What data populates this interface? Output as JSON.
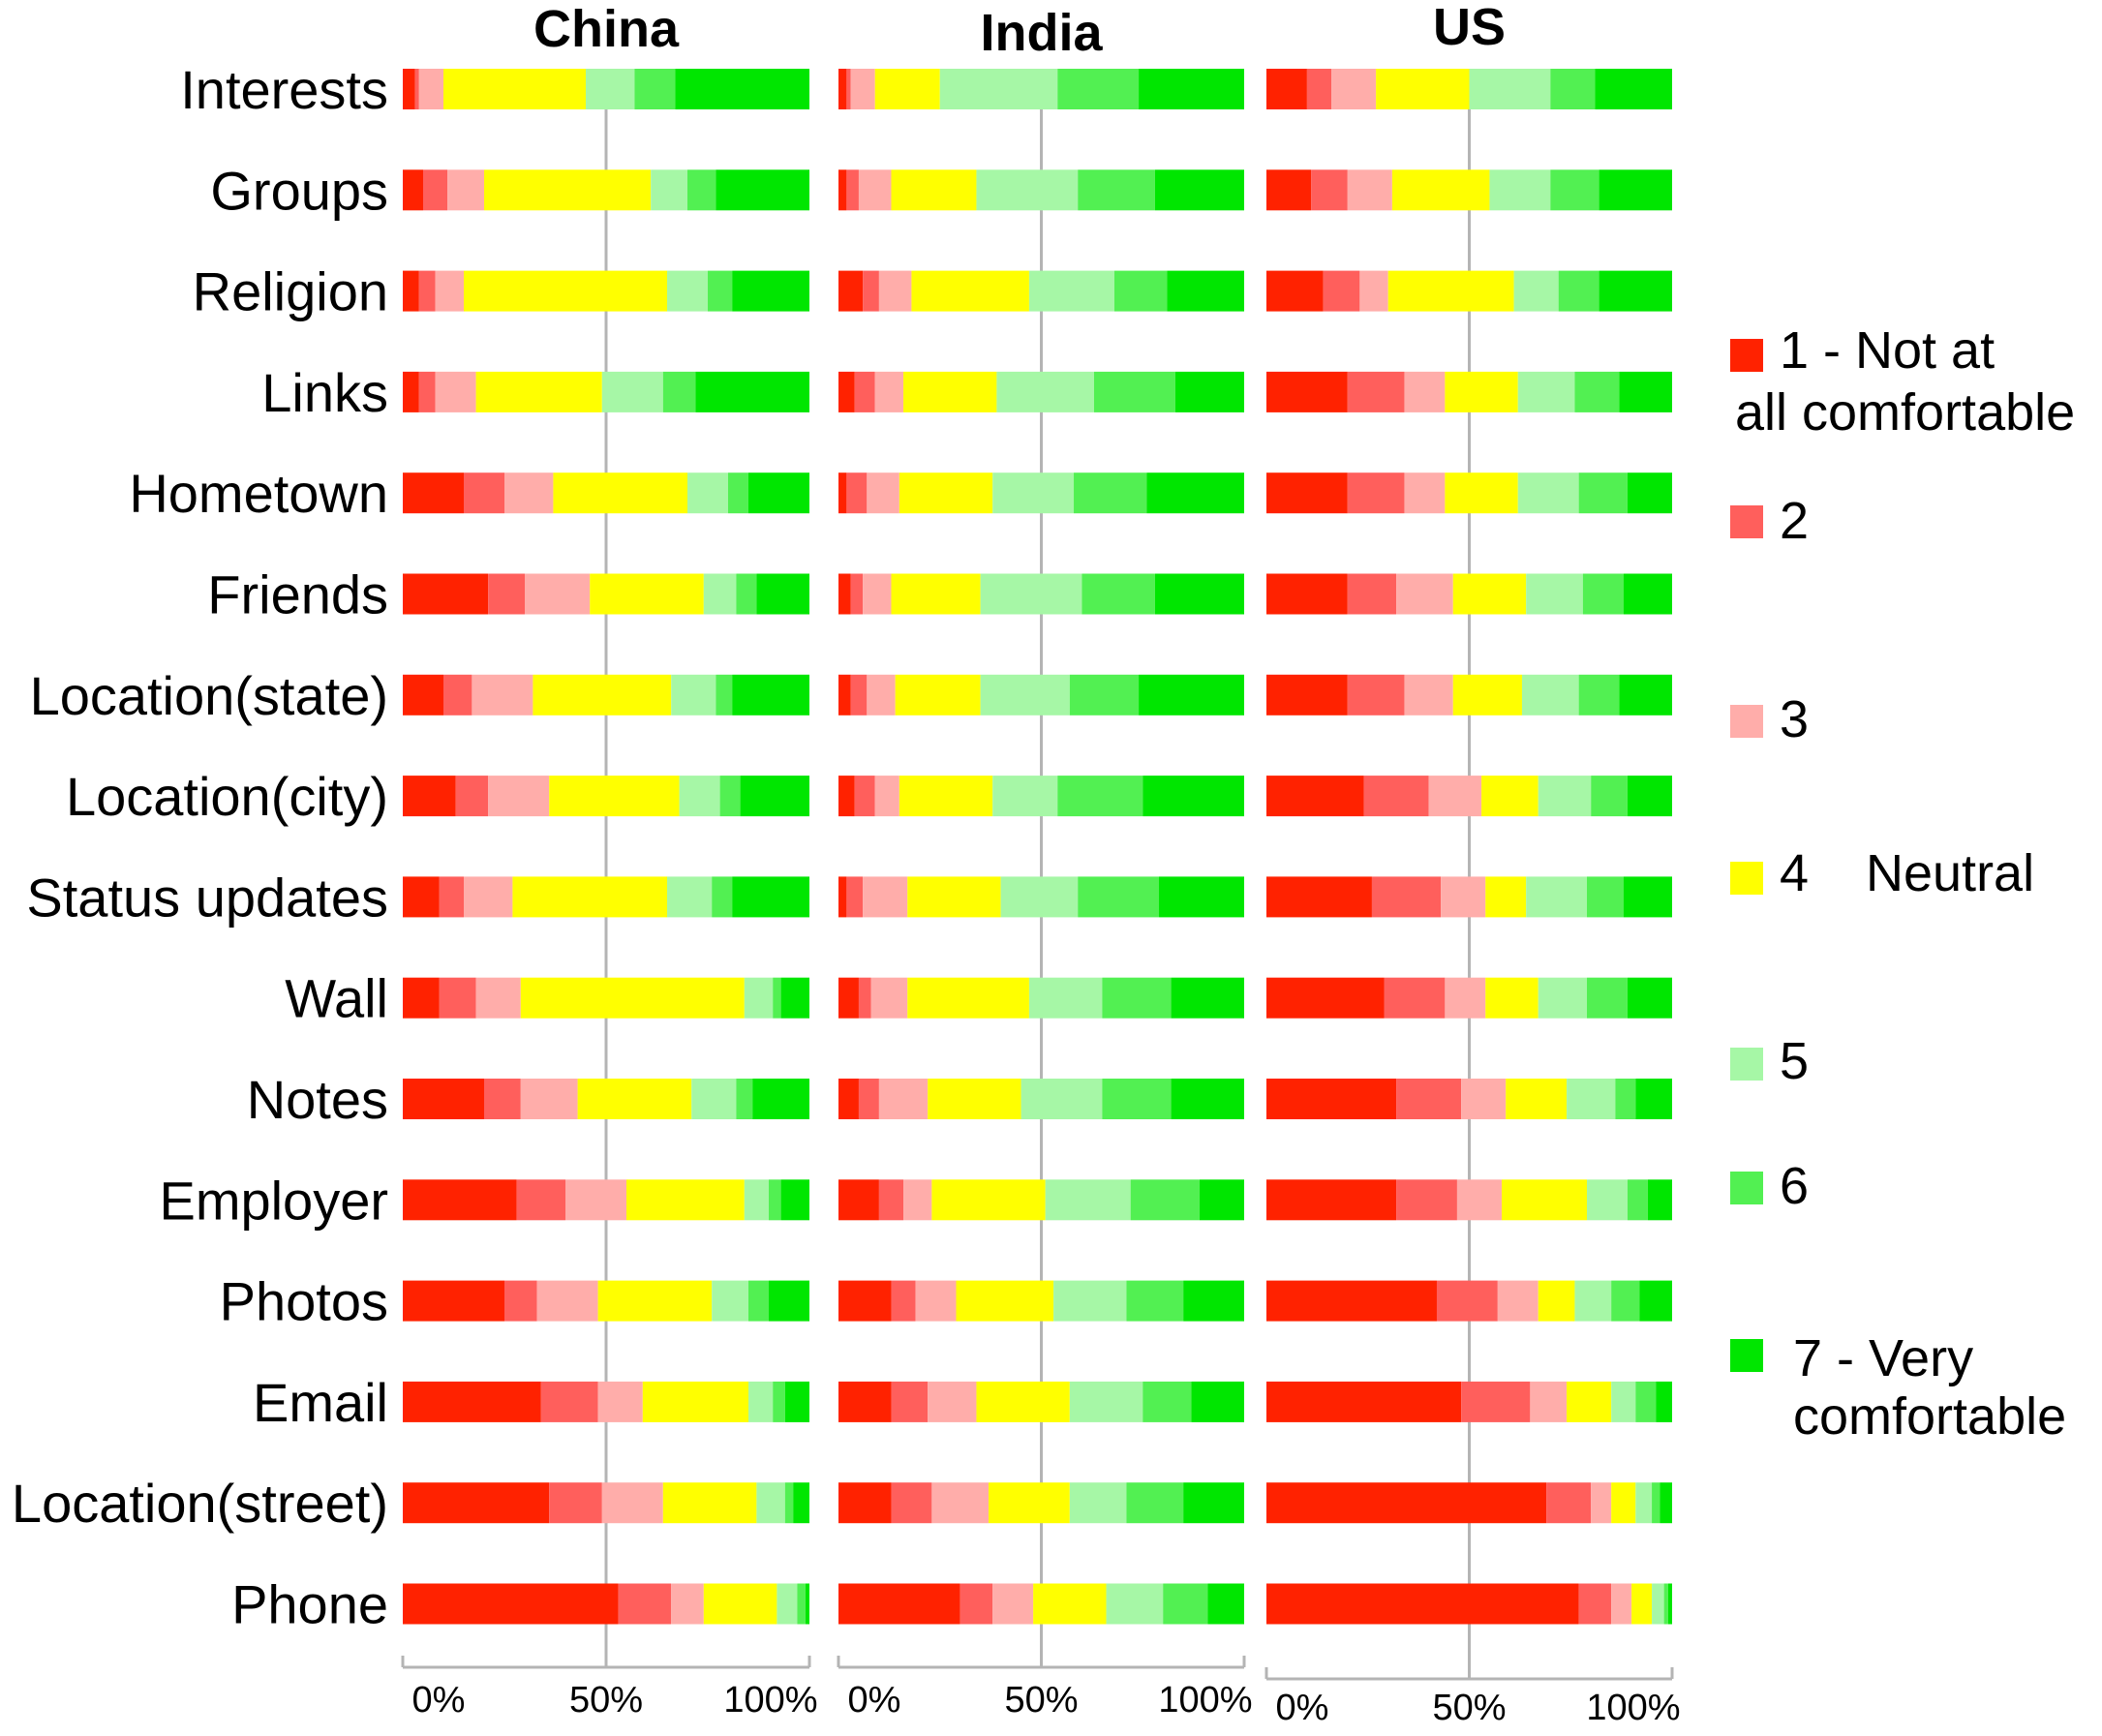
{
  "chart_data": {
    "type": "bar",
    "stacked": true,
    "orientation": "horizontal",
    "normalized": true,
    "categories": [
      "Interests",
      "Groups",
      "Religion",
      "Links",
      "Hometown",
      "Friends",
      "Location(state)",
      "Location(city)",
      "Status updates",
      "Wall",
      "Notes",
      "Employer",
      "Photos",
      "Email",
      "Location(street)",
      "Phone"
    ],
    "panels": [
      {
        "title": "China",
        "series": [
          {
            "name": "1 - Not at all comfortable",
            "values": [
              0.03,
              0.05,
              0.04,
              0.04,
              0.15,
              0.21,
              0.1,
              0.13,
              0.09,
              0.09,
              0.2,
              0.28,
              0.25,
              0.34,
              0.36,
              0.53
            ]
          },
          {
            "name": "2",
            "values": [
              0.01,
              0.06,
              0.04,
              0.04,
              0.1,
              0.09,
              0.07,
              0.08,
              0.06,
              0.09,
              0.09,
              0.12,
              0.08,
              0.14,
              0.13,
              0.13
            ]
          },
          {
            "name": "3",
            "values": [
              0.06,
              0.09,
              0.07,
              0.1,
              0.12,
              0.16,
              0.15,
              0.15,
              0.12,
              0.11,
              0.14,
              0.15,
              0.15,
              0.11,
              0.15,
              0.08
            ]
          },
          {
            "name": "4 Neutral",
            "values": [
              0.35,
              0.41,
              0.5,
              0.31,
              0.33,
              0.28,
              0.34,
              0.32,
              0.38,
              0.55,
              0.28,
              0.29,
              0.28,
              0.26,
              0.23,
              0.18
            ]
          },
          {
            "name": "5",
            "values": [
              0.12,
              0.09,
              0.1,
              0.15,
              0.1,
              0.08,
              0.11,
              0.1,
              0.11,
              0.07,
              0.11,
              0.06,
              0.09,
              0.06,
              0.07,
              0.05
            ]
          },
          {
            "name": "6",
            "values": [
              0.1,
              0.07,
              0.06,
              0.08,
              0.05,
              0.05,
              0.04,
              0.05,
              0.05,
              0.02,
              0.04,
              0.03,
              0.05,
              0.03,
              0.02,
              0.02
            ]
          },
          {
            "name": "7 - Very comfortable",
            "values": [
              0.33,
              0.23,
              0.19,
              0.28,
              0.15,
              0.13,
              0.19,
              0.17,
              0.19,
              0.07,
              0.14,
              0.07,
              0.1,
              0.06,
              0.04,
              0.01
            ]
          }
        ]
      },
      {
        "title": "India",
        "series": [
          {
            "name": "1 - Not at all comfortable",
            "values": [
              0.02,
              0.02,
              0.06,
              0.04,
              0.02,
              0.03,
              0.03,
              0.04,
              0.02,
              0.05,
              0.05,
              0.1,
              0.13,
              0.13,
              0.13,
              0.3
            ]
          },
          {
            "name": "2",
            "values": [
              0.01,
              0.03,
              0.04,
              0.05,
              0.05,
              0.03,
              0.04,
              0.05,
              0.04,
              0.03,
              0.05,
              0.06,
              0.06,
              0.09,
              0.1,
              0.08
            ]
          },
          {
            "name": "3",
            "values": [
              0.06,
              0.08,
              0.08,
              0.07,
              0.08,
              0.07,
              0.07,
              0.06,
              0.11,
              0.09,
              0.12,
              0.07,
              0.1,
              0.12,
              0.14,
              0.1
            ]
          },
          {
            "name": "4 Neutral",
            "values": [
              0.16,
              0.21,
              0.29,
              0.23,
              0.23,
              0.22,
              0.21,
              0.23,
              0.23,
              0.3,
              0.23,
              0.28,
              0.24,
              0.23,
              0.2,
              0.18
            ]
          },
          {
            "name": "5",
            "values": [
              0.29,
              0.25,
              0.21,
              0.24,
              0.2,
              0.25,
              0.22,
              0.16,
              0.19,
              0.18,
              0.2,
              0.21,
              0.18,
              0.18,
              0.14,
              0.14
            ]
          },
          {
            "name": "6",
            "values": [
              0.2,
              0.19,
              0.13,
              0.2,
              0.18,
              0.18,
              0.17,
              0.21,
              0.2,
              0.17,
              0.17,
              0.17,
              0.14,
              0.12,
              0.14,
              0.11
            ]
          },
          {
            "name": "7 - Very comfortable",
            "values": [
              0.26,
              0.22,
              0.19,
              0.17,
              0.24,
              0.22,
              0.26,
              0.25,
              0.21,
              0.18,
              0.18,
              0.11,
              0.15,
              0.13,
              0.15,
              0.09
            ]
          }
        ]
      },
      {
        "title": "US",
        "series": [
          {
            "name": "1 - Not at all comfortable",
            "values": [
              0.1,
              0.11,
              0.14,
              0.2,
              0.2,
              0.2,
              0.2,
              0.24,
              0.26,
              0.29,
              0.32,
              0.32,
              0.42,
              0.48,
              0.69,
              0.77
            ]
          },
          {
            "name": "2",
            "values": [
              0.06,
              0.09,
              0.09,
              0.14,
              0.14,
              0.12,
              0.14,
              0.16,
              0.17,
              0.15,
              0.16,
              0.15,
              0.15,
              0.17,
              0.11,
              0.08
            ]
          },
          {
            "name": "3",
            "values": [
              0.11,
              0.11,
              0.07,
              0.1,
              0.1,
              0.14,
              0.12,
              0.13,
              0.11,
              0.1,
              0.11,
              0.11,
              0.1,
              0.09,
              0.05,
              0.05
            ]
          },
          {
            "name": "4 Neutral",
            "values": [
              0.23,
              0.24,
              0.31,
              0.18,
              0.18,
              0.18,
              0.17,
              0.14,
              0.1,
              0.13,
              0.15,
              0.21,
              0.09,
              0.11,
              0.06,
              0.05
            ]
          },
          {
            "name": "5",
            "values": [
              0.2,
              0.15,
              0.11,
              0.14,
              0.15,
              0.14,
              0.14,
              0.13,
              0.15,
              0.12,
              0.12,
              0.1,
              0.09,
              0.06,
              0.04,
              0.03
            ]
          },
          {
            "name": "6",
            "values": [
              0.11,
              0.12,
              0.1,
              0.11,
              0.12,
              0.1,
              0.1,
              0.09,
              0.09,
              0.1,
              0.05,
              0.05,
              0.07,
              0.05,
              0.02,
              0.01
            ]
          },
          {
            "name": "7 - Very comfortable",
            "values": [
              0.19,
              0.18,
              0.18,
              0.13,
              0.11,
              0.12,
              0.13,
              0.11,
              0.12,
              0.11,
              0.09,
              0.06,
              0.08,
              0.04,
              0.03,
              0.01
            ]
          }
        ]
      }
    ],
    "xticks": [
      "0%",
      "50%",
      "100%"
    ],
    "xlim": [
      0,
      1
    ],
    "legend": {
      "position": "right",
      "entries": [
        {
          "lines": [
            "1 - Not at",
            "all comfortable"
          ],
          "color": "#ff2200"
        },
        {
          "lines": [
            "2"
          ],
          "color": "#ff5f5c"
        },
        {
          "lines": [
            "3"
          ],
          "color": "#ffadaa"
        },
        {
          "lines": [
            "4",
            "Neutral"
          ],
          "color": "#ffff00",
          "inline": true
        },
        {
          "lines": [
            "5"
          ],
          "color": "#a6f7a6"
        },
        {
          "lines": [
            "6"
          ],
          "color": "#52f052"
        },
        {
          "lines": [
            "7 - Very",
            "comfortable"
          ],
          "color": "#00e600"
        }
      ]
    },
    "colors": [
      "#ff2200",
      "#ff5f5c",
      "#ffadaa",
      "#ffff00",
      "#a6f7a6",
      "#52f052",
      "#00e600"
    ],
    "grid_color": "#b4b4b4"
  }
}
